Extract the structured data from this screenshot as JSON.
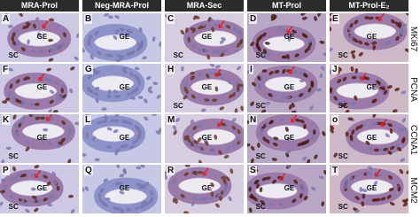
{
  "header": {
    "columns": [
      "MRA-Prol",
      "Neg-MRA-Prol",
      "MRA-Sec",
      "MT-Prol",
      "MT-Prol-E₂"
    ]
  },
  "row_labels": [
    "MKi67",
    "PCNA",
    "CCNA1",
    "MCM2"
  ],
  "panels": [
    [
      {
        "letter": "A",
        "labels": [
          "GE",
          "SC"
        ]
      },
      {
        "letter": "B",
        "labels": [
          "GE"
        ]
      },
      {
        "letter": "C",
        "labels": [
          "GE",
          "SC"
        ]
      },
      {
        "letter": "D",
        "labels": [
          "GE",
          "SC"
        ]
      },
      {
        "letter": "E",
        "labels": [
          "GE",
          "SC"
        ]
      }
    ],
    [
      {
        "letter": "F",
        "labels": [
          "GE"
        ]
      },
      {
        "letter": "G",
        "labels": [
          "GE"
        ]
      },
      {
        "letter": "H",
        "labels": [
          "GE",
          "SC"
        ]
      },
      {
        "letter": "I",
        "labels": [
          "GE",
          "SC"
        ]
      },
      {
        "letter": "J",
        "labels": [
          "GE",
          "SC"
        ]
      }
    ],
    [
      {
        "letter": "K",
        "labels": [
          "GE",
          "SC"
        ]
      },
      {
        "letter": "L",
        "labels": [
          "GE"
        ]
      },
      {
        "letter": "M",
        "labels": [
          "GE"
        ]
      },
      {
        "letter": "N",
        "labels": [
          "GE",
          "SC"
        ]
      },
      {
        "letter": "o",
        "labels": [
          "GE",
          "SC"
        ]
      }
    ],
    [
      {
        "letter": "P",
        "labels": [
          "GE",
          "SC"
        ]
      },
      {
        "letter": "Q",
        "labels": [
          "GE"
        ]
      },
      {
        "letter": "R",
        "labels": [
          "GE"
        ]
      },
      {
        "letter": "S",
        "labels": [
          "GE",
          "SC"
        ]
      },
      {
        "letter": "T",
        "labels": [
          "GE",
          "SC"
        ]
      }
    ]
  ]
}
